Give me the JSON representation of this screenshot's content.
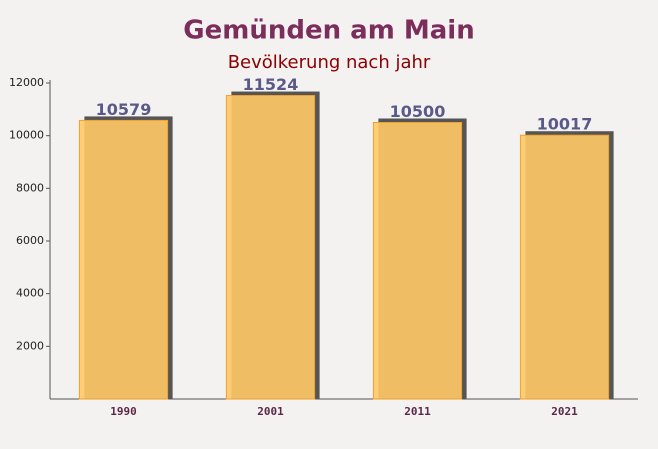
{
  "chart_data": {
    "type": "bar",
    "title": "Gemünden am Main",
    "subtitle": "Bevölkerung nach jahr",
    "categories": [
      "1990",
      "2001",
      "2011",
      "2021"
    ],
    "values": [
      10579,
      11524,
      10500,
      10017
    ],
    "color": "#ffc966",
    "ylim": [
      0,
      12000
    ],
    "yticks": [
      2000,
      4000,
      6000,
      8000,
      10000,
      12000
    ]
  }
}
